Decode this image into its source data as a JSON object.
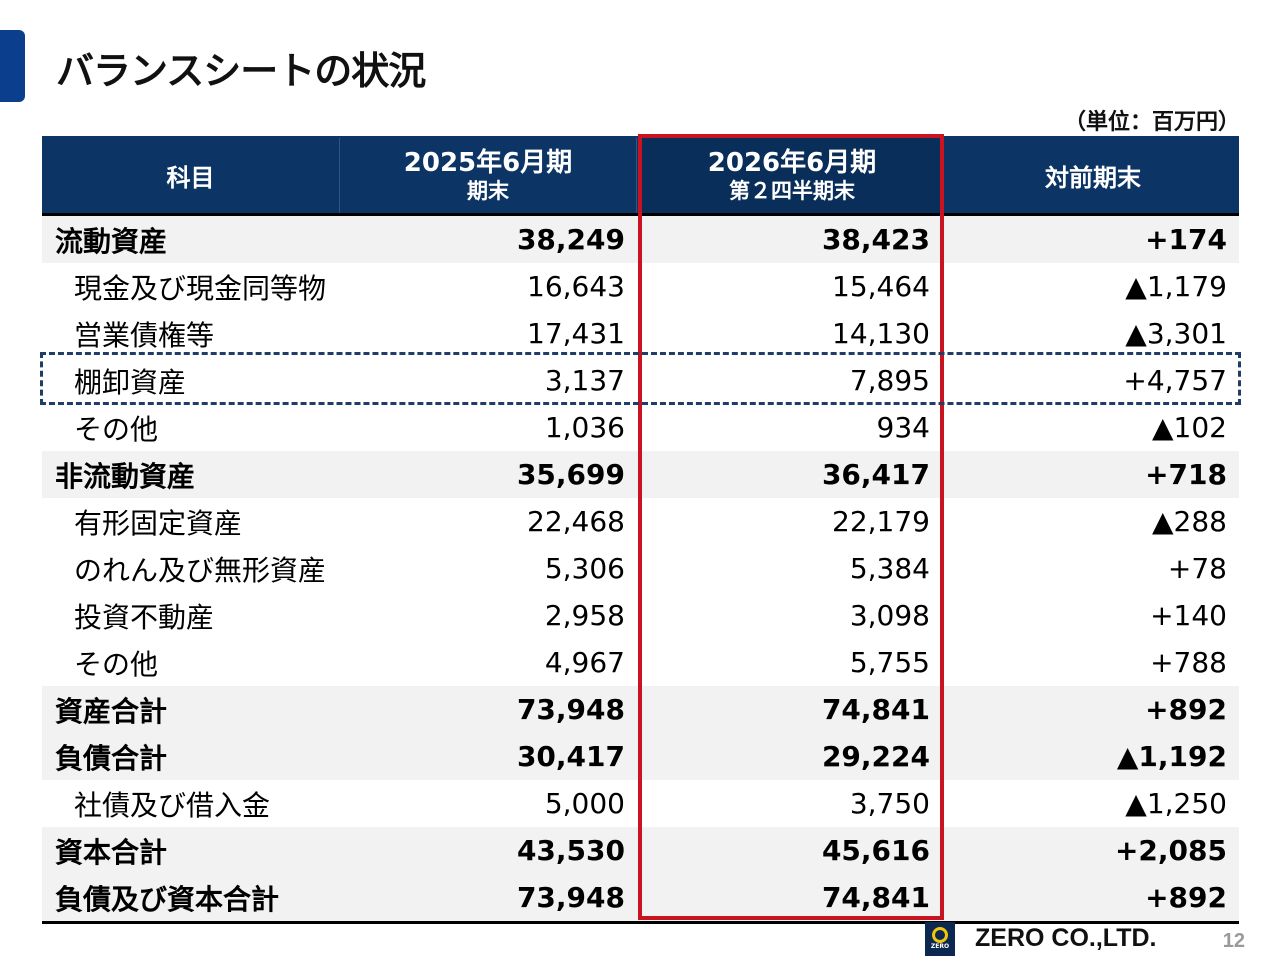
{
  "title": "バランスシートの状況",
  "unit_note": "（単位：百万円）",
  "header": {
    "col1": "科目",
    "col2_line1": "2025年6月期",
    "col2_line2": "期末",
    "col3_line1": "2026年6月期",
    "col3_line2": "第２四半期末",
    "col4": "対前期末"
  },
  "rows": [
    {
      "name": "流動資産",
      "v1": "38,249",
      "v2": "38,423",
      "v3": "+174"
    },
    {
      "name": "現金及び現金同等物",
      "v1": "16,643",
      "v2": "15,464",
      "v3": "▲1,179"
    },
    {
      "name": "営業債権等",
      "v1": "17,431",
      "v2": "14,130",
      "v3": "▲3,301"
    },
    {
      "name": "棚卸資産",
      "v1": "3,137",
      "v2": "7,895",
      "v3": "+4,757"
    },
    {
      "name": "その他",
      "v1": "1,036",
      "v2": "934",
      "v3": "▲102"
    },
    {
      "name": "非流動資産",
      "v1": "35,699",
      "v2": "36,417",
      "v3": "+718"
    },
    {
      "name": "有形固定資産",
      "v1": "22,468",
      "v2": "22,179",
      "v3": "▲288"
    },
    {
      "name": "のれん及び無形資産",
      "v1": "5,306",
      "v2": "5,384",
      "v3": "+78"
    },
    {
      "name": "投資不動産",
      "v1": "2,958",
      "v2": "3,098",
      "v3": "+140"
    },
    {
      "name": "その他",
      "v1": "4,967",
      "v2": "5,755",
      "v3": "+788"
    },
    {
      "name": "資産合計",
      "v1": "73,948",
      "v2": "74,841",
      "v3": "+892"
    },
    {
      "name": "負債合計",
      "v1": "30,417",
      "v2": "29,224",
      "v3": "▲1,192"
    },
    {
      "name": "社債及び借入金",
      "v1": "5,000",
      "v2": "3,750",
      "v3": "▲1,250"
    },
    {
      "name": "資本合計",
      "v1": "43,530",
      "v2": "45,616",
      "v3": "+2,085"
    },
    {
      "name": "負債及び資本合計",
      "v1": "73,948",
      "v2": "74,841",
      "v3": "+892"
    }
  ],
  "footer": {
    "logo_text": "ZERO",
    "company": "ZERO CO.,LTD.",
    "page": "12"
  },
  "colors": {
    "header_bg": "#0c3566",
    "accent": "#0b3e8c",
    "highlight": "#c81420",
    "dashed": "#1f3d66"
  }
}
